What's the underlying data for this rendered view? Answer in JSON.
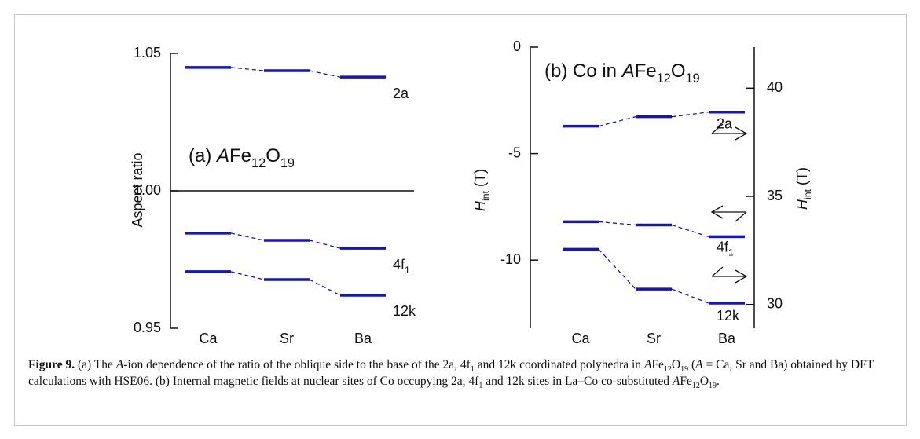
{
  "chart_data": [
    {
      "type": "level",
      "title": [
        {
          "text": "(a) "
        },
        {
          "text": "A",
          "style": "italic"
        },
        {
          "text": "Fe"
        },
        {
          "text": "12",
          "style": "sub"
        },
        {
          "text": "O"
        },
        {
          "text": "19",
          "style": "sub"
        }
      ],
      "ylabel": [
        {
          "text": "Aspect ratio"
        }
      ],
      "categories": [
        "Ca",
        "Sr",
        "Ba"
      ],
      "series": [
        {
          "label": [
            {
              "text": "2a"
            }
          ],
          "color": "#1414c0",
          "values": [
            1.0449,
            1.0437,
            1.0414
          ]
        },
        {
          "label": [
            {
              "text": "4f"
            },
            {
              "text": "1",
              "style": "sub"
            }
          ],
          "color": "#1414c0",
          "values": [
            0.9846,
            0.982,
            0.9791
          ]
        },
        {
          "label": [
            {
              "text": "12k"
            }
          ],
          "color": "#1414c0",
          "values": [
            0.9706,
            0.9677,
            0.962
          ]
        }
      ],
      "ylim": [
        0.95,
        1.05
      ],
      "yticks": [
        1.05,
        {
          "value": 1,
          "label": "1.00"
        },
        0.95
      ],
      "reference_line": 1
    },
    {
      "type": "level",
      "title": [
        {
          "text": "(b)  Co in "
        },
        {
          "text": "A",
          "style": "italic"
        },
        {
          "text": "Fe"
        },
        {
          "text": "12",
          "style": "sub"
        },
        {
          "text": "O"
        },
        {
          "text": "19",
          "style": "sub"
        }
      ],
      "ylabel": [
        {
          "text": "H",
          "style": "italic"
        },
        {
          "text": "int",
          "style": "sub"
        },
        {
          "text": " (T)"
        }
      ],
      "y2label": [
        {
          "text": "H",
          "style": "italic"
        },
        {
          "text": "int",
          "style": "sub"
        },
        {
          "text": " (T)"
        }
      ],
      "categories": [
        "Ca",
        "Sr",
        "Ba"
      ],
      "series": [
        {
          "label": [
            {
              "text": "2a"
            }
          ],
          "color": "#1414c0",
          "values": [
            -3.71,
            -3.27,
            -3.05
          ]
        },
        {
          "label": [
            {
              "text": "4f"
            },
            {
              "text": "1",
              "style": "sub"
            }
          ],
          "color": "#1414c0",
          "values": [
            -8.2,
            -8.35,
            -8.9
          ]
        },
        {
          "label": [
            {
              "text": "12k"
            }
          ],
          "color": "#1414c0",
          "values": [
            -9.49,
            -11.36,
            -12.02
          ]
        }
      ],
      "ylim": [
        -13.2,
        0
      ],
      "yticks": [
        0,
        -5,
        -10
      ],
      "y2lim": [
        28.9,
        41.9
      ],
      "y2ticks": [
        30,
        35,
        40
      ]
    }
  ],
  "caption": [
    {
      "text": "Figure 9.",
      "style": "bold"
    },
    {
      "text": " (a) The "
    },
    {
      "text": "A",
      "style": "italic"
    },
    {
      "text": "-ion dependence of the ratio of the oblique side to the base of the 2a, 4f"
    },
    {
      "text": "1",
      "style": "sub"
    },
    {
      "text": " and 12k coordinated polyhedra in "
    },
    {
      "text": "A",
      "style": "italic"
    },
    {
      "text": "Fe"
    },
    {
      "text": "12",
      "style": "sub"
    },
    {
      "text": "O"
    },
    {
      "text": "19",
      "style": "sub"
    },
    {
      "text": " ("
    },
    {
      "text": "A",
      "style": "italic"
    },
    {
      "text": " = Ca, Sr and Ba) obtained by DFT calculations with HSE06. (b) Internal magnetic fields at nuclear sites of Co occupying 2a, 4f"
    },
    {
      "text": "1",
      "style": "sub"
    },
    {
      "text": " and 12k sites in La–Co co-substituted "
    },
    {
      "text": "A",
      "style": "italic"
    },
    {
      "text": "Fe"
    },
    {
      "text": "12",
      "style": "sub"
    },
    {
      "text": "O"
    },
    {
      "text": "19",
      "style": "sub"
    },
    {
      "text": "."
    }
  ]
}
